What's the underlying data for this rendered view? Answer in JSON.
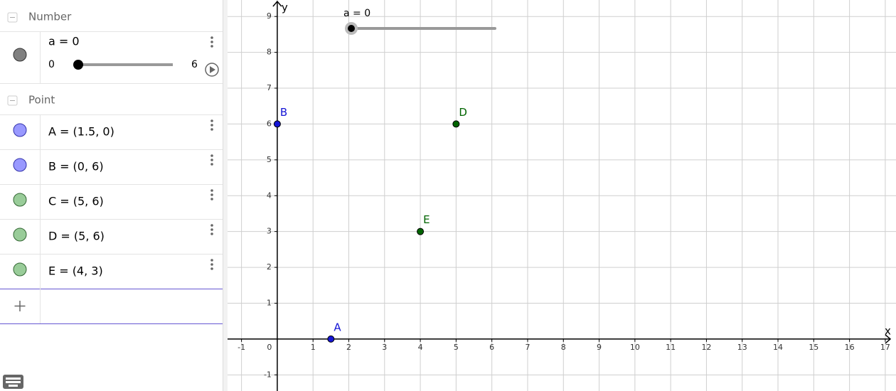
{
  "algebra": {
    "groups": [
      {
        "title": "Number",
        "items": [
          {
            "label": "a = 0",
            "color": "#808080",
            "stroke": "#333333",
            "slider": {
              "min": 0,
              "max": 6,
              "value": 0
            }
          }
        ]
      },
      {
        "title": "Point",
        "items": [
          {
            "label": "A = (1.5, 0)",
            "color": "#9999ff",
            "stroke": "#3333aa"
          },
          {
            "label": "B = (0, 6)",
            "color": "#9999ff",
            "stroke": "#3333aa"
          },
          {
            "label": "C = (5, 6)",
            "color": "#99cc99",
            "stroke": "#336633"
          },
          {
            "label": "D = (5, 6)",
            "color": "#99cc99",
            "stroke": "#336633"
          },
          {
            "label": "E = (4, 3)",
            "color": "#99cc99",
            "stroke": "#336633"
          }
        ]
      }
    ]
  },
  "graphics": {
    "x_label": "x",
    "y_label": "y",
    "xlim": [
      -1.39,
      17.3
    ],
    "ylim": [
      -1.45,
      9.46
    ],
    "xticks": [
      -1,
      0,
      1,
      2,
      3,
      4,
      5,
      6,
      7,
      8,
      9,
      10,
      11,
      12,
      13,
      14,
      15,
      16,
      17
    ],
    "yticks": [
      -1,
      1,
      2,
      3,
      4,
      5,
      6,
      7,
      8,
      9
    ],
    "grid": true,
    "slider": {
      "label": "a = 0",
      "value": 0,
      "min": 0,
      "max": 6
    },
    "points": [
      {
        "name": "A",
        "x": 1.5,
        "y": 0,
        "color": "#1515d5"
      },
      {
        "name": "B",
        "x": 0,
        "y": 6,
        "color": "#1515d5"
      },
      {
        "name": "D",
        "x": 5,
        "y": 6,
        "color": "#006400"
      },
      {
        "name": "E",
        "x": 4,
        "y": 3,
        "color": "#006400"
      }
    ]
  }
}
